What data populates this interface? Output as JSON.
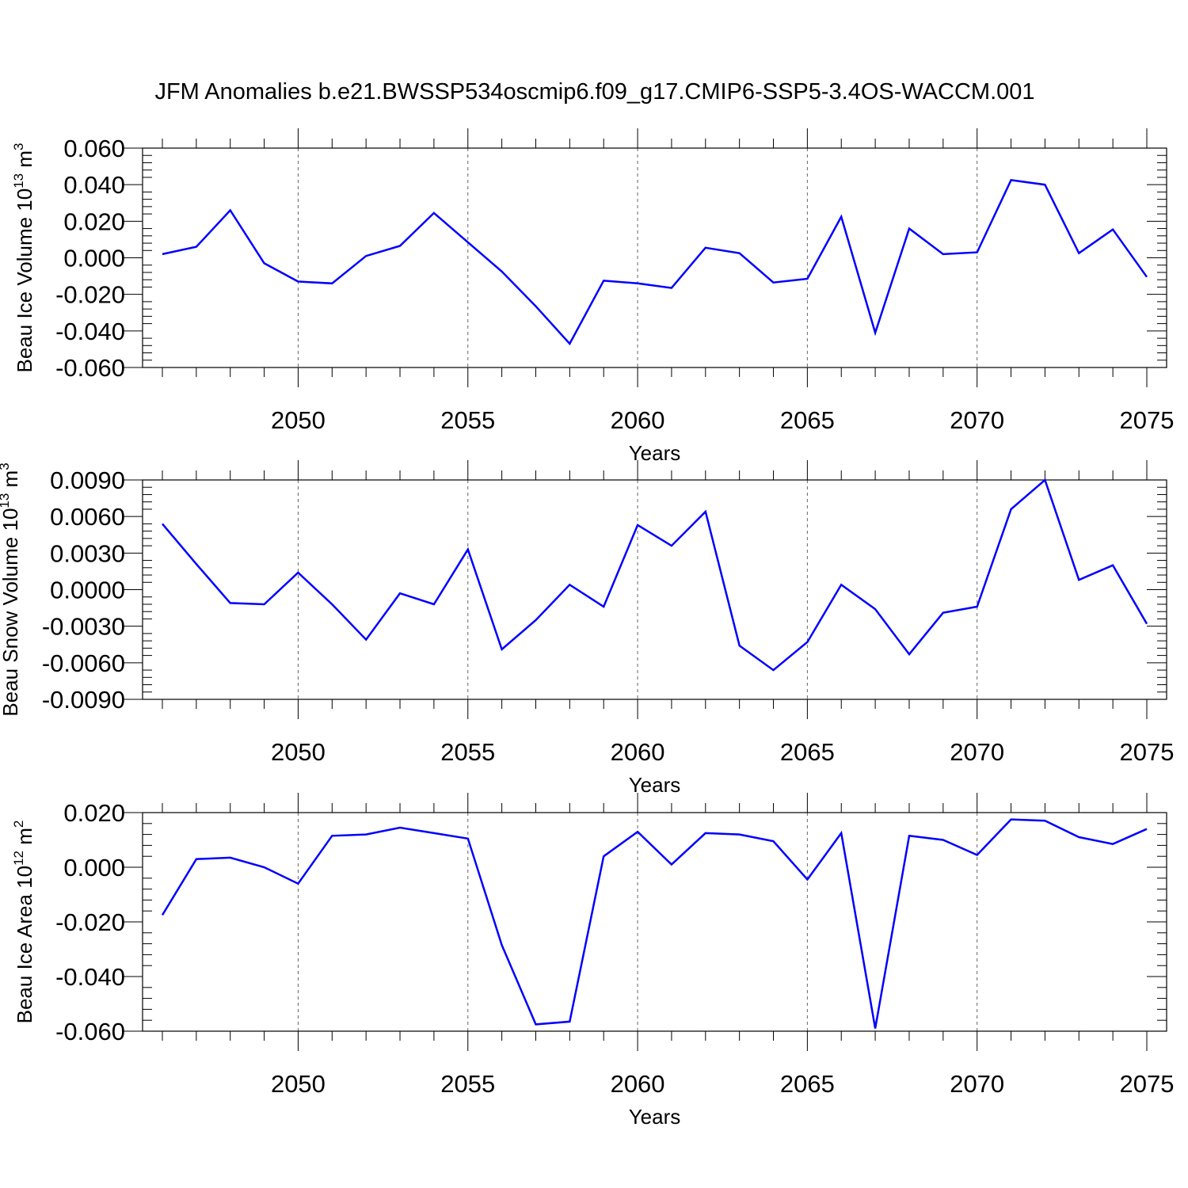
{
  "figure_title": "JFM Anomalies b.e21.BWSSP534oscmip6.f09_g17.CMIP6-SSP5-3.4OS-WACCM.001",
  "line_color": "#0000ff",
  "chart_data": [
    {
      "type": "line",
      "ylabel": "Beau Ice Volume 10",
      "ylabel_exp": "13",
      "ylabel_unit": " m",
      "ylabel_unit_exp": "3",
      "xlabel": "Years",
      "xlim": [
        2046,
        2075
      ],
      "ylim": [
        -0.06,
        0.06
      ],
      "yticks": [
        -0.06,
        -0.04,
        -0.02,
        0.0,
        0.02,
        0.04,
        0.06
      ],
      "ytick_labels": [
        "-0.060",
        "-0.040",
        "-0.020",
        "0.000",
        "0.020",
        "0.040",
        "0.060"
      ],
      "xticks": [
        2050,
        2055,
        2060,
        2065,
        2070,
        2075
      ],
      "xtick_labels": [
        "2050",
        "2055",
        "2060",
        "2065",
        "2070",
        "2075"
      ],
      "x": [
        2046,
        2047,
        2048,
        2049,
        2050,
        2051,
        2052,
        2053,
        2054,
        2055,
        2056,
        2057,
        2058,
        2059,
        2060,
        2061,
        2062,
        2063,
        2064,
        2065,
        2066,
        2067,
        2068,
        2069,
        2070,
        2071,
        2072,
        2073,
        2074,
        2075
      ],
      "series": [
        {
          "name": "Beau Ice Volume",
          "values": [
            0.002,
            0.006,
            0.026,
            -0.003,
            -0.013,
            -0.014,
            0.001,
            0.0065,
            0.0245,
            0.0085,
            -0.0075,
            -0.0265,
            -0.047,
            -0.0125,
            -0.014,
            -0.0165,
            0.0055,
            0.0025,
            -0.0135,
            -0.0115,
            0.0225,
            -0.041,
            0.016,
            0.002,
            0.003,
            0.0425,
            0.04,
            0.0025,
            0.0155,
            -0.0105
          ]
        }
      ]
    },
    {
      "type": "line",
      "ylabel": "Beau Snow Volume 10",
      "ylabel_exp": "13",
      "ylabel_unit": " m",
      "ylabel_unit_exp": "3",
      "xlabel": "Years",
      "xlim": [
        2046,
        2075
      ],
      "ylim": [
        -0.009,
        0.009
      ],
      "yticks": [
        -0.009,
        -0.006,
        -0.003,
        0.0,
        0.003,
        0.006,
        0.009
      ],
      "ytick_labels": [
        "-0.0090",
        "-0.0060",
        "-0.0030",
        "0.0000",
        "0.0030",
        "0.0060",
        "0.0090"
      ],
      "xticks": [
        2050,
        2055,
        2060,
        2065,
        2070,
        2075
      ],
      "xtick_labels": [
        "2050",
        "2055",
        "2060",
        "2065",
        "2070",
        "2075"
      ],
      "x": [
        2046,
        2047,
        2048,
        2049,
        2050,
        2051,
        2052,
        2053,
        2054,
        2055,
        2056,
        2057,
        2058,
        2059,
        2060,
        2061,
        2062,
        2063,
        2064,
        2065,
        2066,
        2067,
        2068,
        2069,
        2070,
        2071,
        2072,
        2073,
        2074,
        2075
      ],
      "series": [
        {
          "name": "Beau Snow Volume",
          "values": [
            0.0054,
            0.0021,
            -0.0011,
            -0.0012,
            0.0014,
            -0.0012,
            -0.0041,
            -0.0003,
            -0.0012,
            0.0033,
            -0.0049,
            -0.0025,
            0.0004,
            -0.0014,
            0.0053,
            0.0036,
            0.0064,
            -0.0046,
            -0.0066,
            -0.0043,
            0.0004,
            -0.0016,
            -0.0053,
            -0.0019,
            -0.0014,
            0.0066,
            0.009,
            0.0008,
            0.002,
            -0.0028
          ]
        }
      ]
    },
    {
      "type": "line",
      "ylabel": "Beau Ice Area 10",
      "ylabel_exp": "12",
      "ylabel_unit": " m",
      "ylabel_unit_exp": "2",
      "xlabel": "Years",
      "xlim": [
        2046,
        2075
      ],
      "ylim": [
        -0.06,
        0.02
      ],
      "yticks": [
        -0.06,
        -0.04,
        -0.02,
        0.0,
        0.02
      ],
      "ytick_labels": [
        "-0.060",
        "-0.040",
        "-0.020",
        "0.000",
        "0.020"
      ],
      "xticks": [
        2050,
        2055,
        2060,
        2065,
        2070,
        2075
      ],
      "xtick_labels": [
        "2050",
        "2055",
        "2060",
        "2065",
        "2070",
        "2075"
      ],
      "x": [
        2046,
        2047,
        2048,
        2049,
        2050,
        2051,
        2052,
        2053,
        2054,
        2055,
        2056,
        2057,
        2058,
        2059,
        2060,
        2061,
        2062,
        2063,
        2064,
        2065,
        2066,
        2067,
        2068,
        2069,
        2070,
        2071,
        2072,
        2073,
        2074,
        2075
      ],
      "series": [
        {
          "name": "Beau Ice Area",
          "values": [
            -0.0175,
            0.003,
            0.0035,
            0.0,
            -0.006,
            0.0115,
            0.012,
            0.0145,
            0.0125,
            0.0105,
            -0.0285,
            -0.0575,
            -0.0565,
            0.004,
            0.013,
            0.001,
            0.0125,
            0.012,
            0.0095,
            -0.0045,
            0.0125,
            -0.059,
            0.0115,
            0.01,
            0.0045,
            0.0175,
            0.017,
            0.011,
            0.0085,
            0.014
          ]
        }
      ]
    }
  ]
}
